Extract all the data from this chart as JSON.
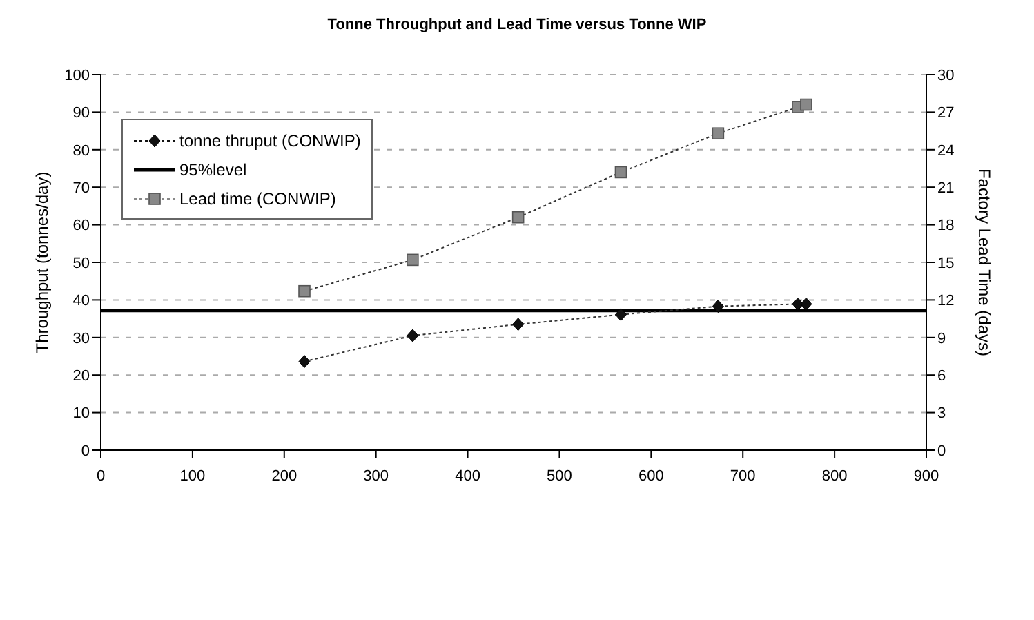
{
  "chart_data": {
    "type": "line",
    "title": "Tonne Throughput and Lead Time versus Tonne WIP",
    "ylabel": "Throughput (tonnes/day)",
    "y2label": "Factory Lead Time (days)",
    "x": [
      222,
      340,
      455,
      567,
      673,
      760,
      769
    ],
    "series": [
      {
        "name": "tonne thruput (CONWIP)",
        "color": "#111111",
        "marker": "diamond",
        "values": [
          23.6,
          30.5,
          33.5,
          36.1,
          38.3,
          38.9,
          38.9
        ]
      },
      {
        "name": "Lead time (CONWIP)",
        "color": "#888888",
        "marker": "square",
        "axis": "y2",
        "values": [
          12.7,
          15.2,
          18.6,
          22.2,
          25.3,
          27.4,
          27.6
        ]
      }
    ],
    "ref_lines": [
      {
        "axis": "y",
        "value": 37.2,
        "label": "95%level",
        "color": "#000000"
      }
    ],
    "xlim": [
      0,
      900
    ],
    "xticks": [
      0,
      100,
      200,
      300,
      400,
      500,
      600,
      700,
      800,
      900
    ],
    "ylim": [
      0,
      100
    ],
    "yticks": [
      0,
      10,
      20,
      30,
      40,
      50,
      60,
      70,
      80,
      90,
      100
    ],
    "y2lim": [
      0,
      30
    ],
    "y2ticks": [
      0,
      3,
      6,
      9,
      12,
      15,
      18,
      21,
      24,
      27,
      30
    ],
    "grid": "y",
    "legend": "top left",
    "line_style": "dotted"
  }
}
